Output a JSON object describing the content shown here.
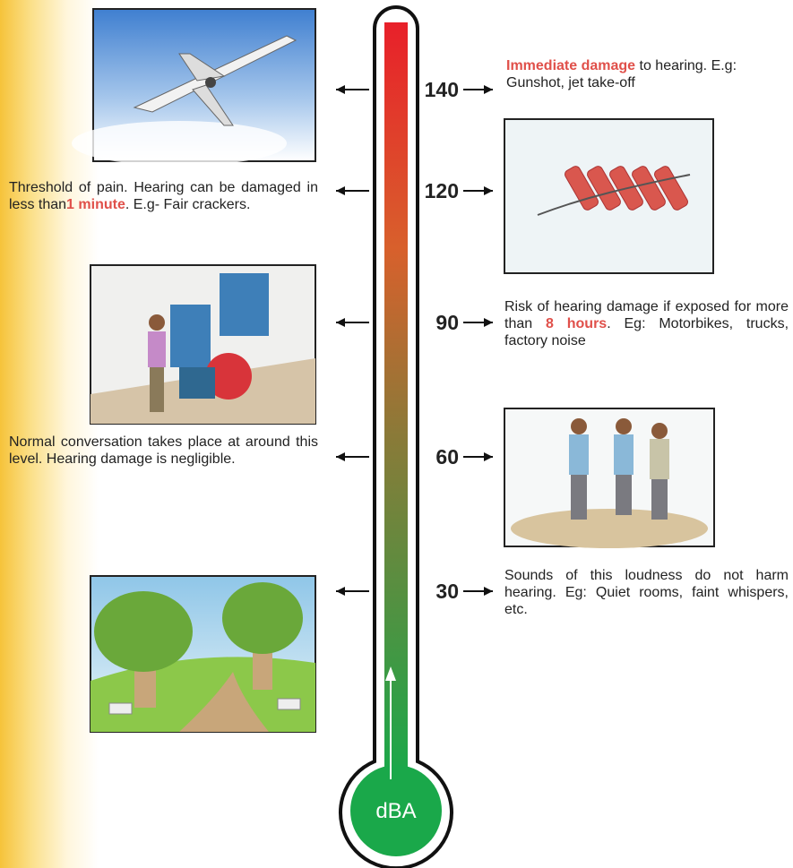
{
  "thermometer": {
    "unit": "dBA"
  },
  "items": [
    {
      "level": 140,
      "description": [
        {
          "text": "Immediate damage",
          "highlight": true
        },
        {
          "text": " to hearing. E.g: Gunshot, jet take-off",
          "highlight": false
        }
      ]
    },
    {
      "level": 120,
      "description": [
        {
          "text": "Threshold of pain. Hearing can be damaged in less than",
          "highlight": false
        },
        {
          "text": "1 minute",
          "highlight": true
        },
        {
          "text": ". E.g- Fair crackers.",
          "highlight": false
        }
      ]
    },
    {
      "level": 90,
      "description": [
        {
          "text": "Risk of hearing damage if exposed for more than ",
          "highlight": false
        },
        {
          "text": "8 hours",
          "highlight": true
        },
        {
          "text": ". Eg: Motorbikes, trucks, factory noise",
          "highlight": false
        }
      ]
    },
    {
      "level": 60,
      "description": [
        {
          "text": "Normal conversation takes place at around this level. Hearing damage is negligible.",
          "highlight": false
        }
      ]
    },
    {
      "level": 30,
      "description": [
        {
          "text": "Sounds of this loudness do not harm hearing. Eg: Quiet rooms, faint whispers, etc.",
          "highlight": false
        }
      ]
    }
  ]
}
